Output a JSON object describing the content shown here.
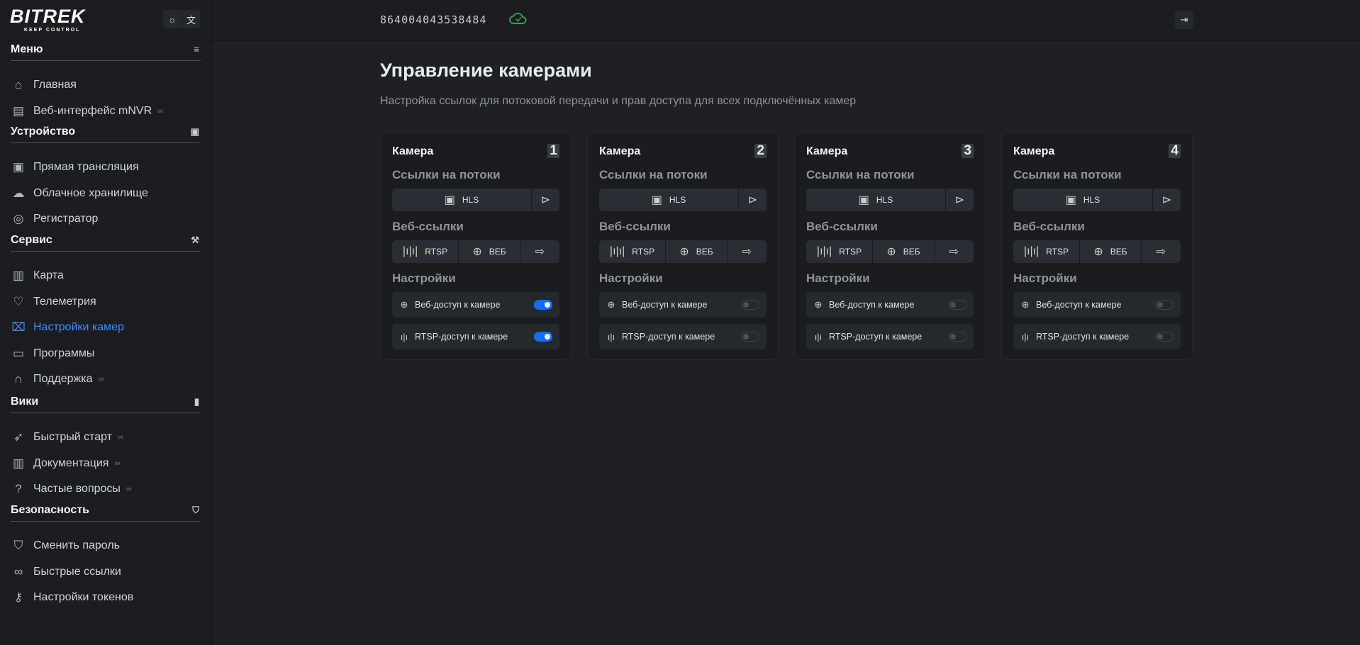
{
  "brand": {
    "logo_text": "BITREK",
    "logo_tagline": "KEEP CONTROL"
  },
  "topbar": {
    "theme_icon": "sun-icon",
    "lang_icon": "translate-icon"
  },
  "sidebar": {
    "sections": [
      {
        "title": "Меню",
        "icon": "menu-icon",
        "items": [
          {
            "label": "Главная",
            "icon": "home-icon"
          },
          {
            "label": "Веб-интерфейс mNVR",
            "icon": "layout-icon",
            "external": true
          }
        ]
      },
      {
        "title": "Устройство",
        "icon": "cpu-icon",
        "items": [
          {
            "label": "Прямая трансляция",
            "icon": "tv-play-icon"
          },
          {
            "label": "Облачное хранилище",
            "icon": "cloud-icon"
          },
          {
            "label": "Регистратор",
            "icon": "disc-icon"
          }
        ]
      },
      {
        "title": "Сервис",
        "icon": "wrench-icon",
        "items": [
          {
            "label": "Карта",
            "icon": "map-icon"
          },
          {
            "label": "Телеметрия",
            "icon": "heart-pulse-icon"
          },
          {
            "label": "Настройки камер",
            "icon": "camera-icon",
            "active": true
          },
          {
            "label": "Программы",
            "icon": "archive-icon"
          },
          {
            "label": "Поддержка",
            "icon": "headset-icon",
            "external": true
          }
        ]
      },
      {
        "title": "Вики",
        "icon": "book-icon",
        "items": [
          {
            "label": "Быстрый старт",
            "icon": "rocket-icon",
            "external": true
          },
          {
            "label": "Документация",
            "icon": "books-icon",
            "external": true
          },
          {
            "label": "Частые вопросы",
            "icon": "question-icon",
            "external": true
          }
        ]
      },
      {
        "title": "Безопасность",
        "icon": "shield-icon",
        "items": [
          {
            "label": "Сменить пароль",
            "icon": "shield-star-icon"
          },
          {
            "label": "Быстрые ссылки",
            "icon": "link-icon"
          },
          {
            "label": "Настройки токенов",
            "icon": "key-icon"
          }
        ]
      }
    ]
  },
  "header": {
    "device_id": "864004043538484",
    "cloud_status": "connected",
    "accent_ok": "#2f9e55"
  },
  "main": {
    "title": "Управление камерами",
    "subtitle": "Настройка ссылок для потоковой передачи и прав доступа для всех подключённых камер",
    "cameras": [
      {
        "label": "Камера",
        "number": "1",
        "streams_label": "Ссылки на потоки",
        "hls": "HLS",
        "web_links_label": "Веб-ссылки",
        "rtsp": "RTSP",
        "web": "ВЕБ",
        "settings_label": "Настройки",
        "web_access": "Веб-доступ к камере",
        "web_access_on": true,
        "rtsp_access": "RTSP-доступ к камере",
        "rtsp_access_on": true
      },
      {
        "label": "Камера",
        "number": "2",
        "streams_label": "Ссылки на потоки",
        "hls": "HLS",
        "web_links_label": "Веб-ссылки",
        "rtsp": "RTSP",
        "web": "ВЕБ",
        "settings_label": "Настройки",
        "web_access": "Веб-доступ к камере",
        "web_access_on": false,
        "rtsp_access": "RTSP-доступ к камере",
        "rtsp_access_on": false
      },
      {
        "label": "Камера",
        "number": "3",
        "streams_label": "Ссылки на потоки",
        "hls": "HLS",
        "web_links_label": "Веб-ссылки",
        "rtsp": "RTSP",
        "web": "ВЕБ",
        "settings_label": "Настройки",
        "web_access": "Веб-доступ к камере",
        "web_access_on": false,
        "rtsp_access": "RTSP-доступ к камере",
        "rtsp_access_on": false
      },
      {
        "label": "Камера",
        "number": "4",
        "streams_label": "Ссылки на потоки",
        "hls": "HLS",
        "web_links_label": "Веб-ссылки",
        "rtsp": "RTSP",
        "web": "ВЕБ",
        "settings_label": "Настройки",
        "web_access": "Веб-доступ к камере",
        "web_access_on": false,
        "rtsp_access": "RTSP-доступ к камере",
        "rtsp_access_on": false
      }
    ]
  },
  "colors": {
    "accent": "#0d6efd",
    "active_nav": "#3d8bfd"
  }
}
